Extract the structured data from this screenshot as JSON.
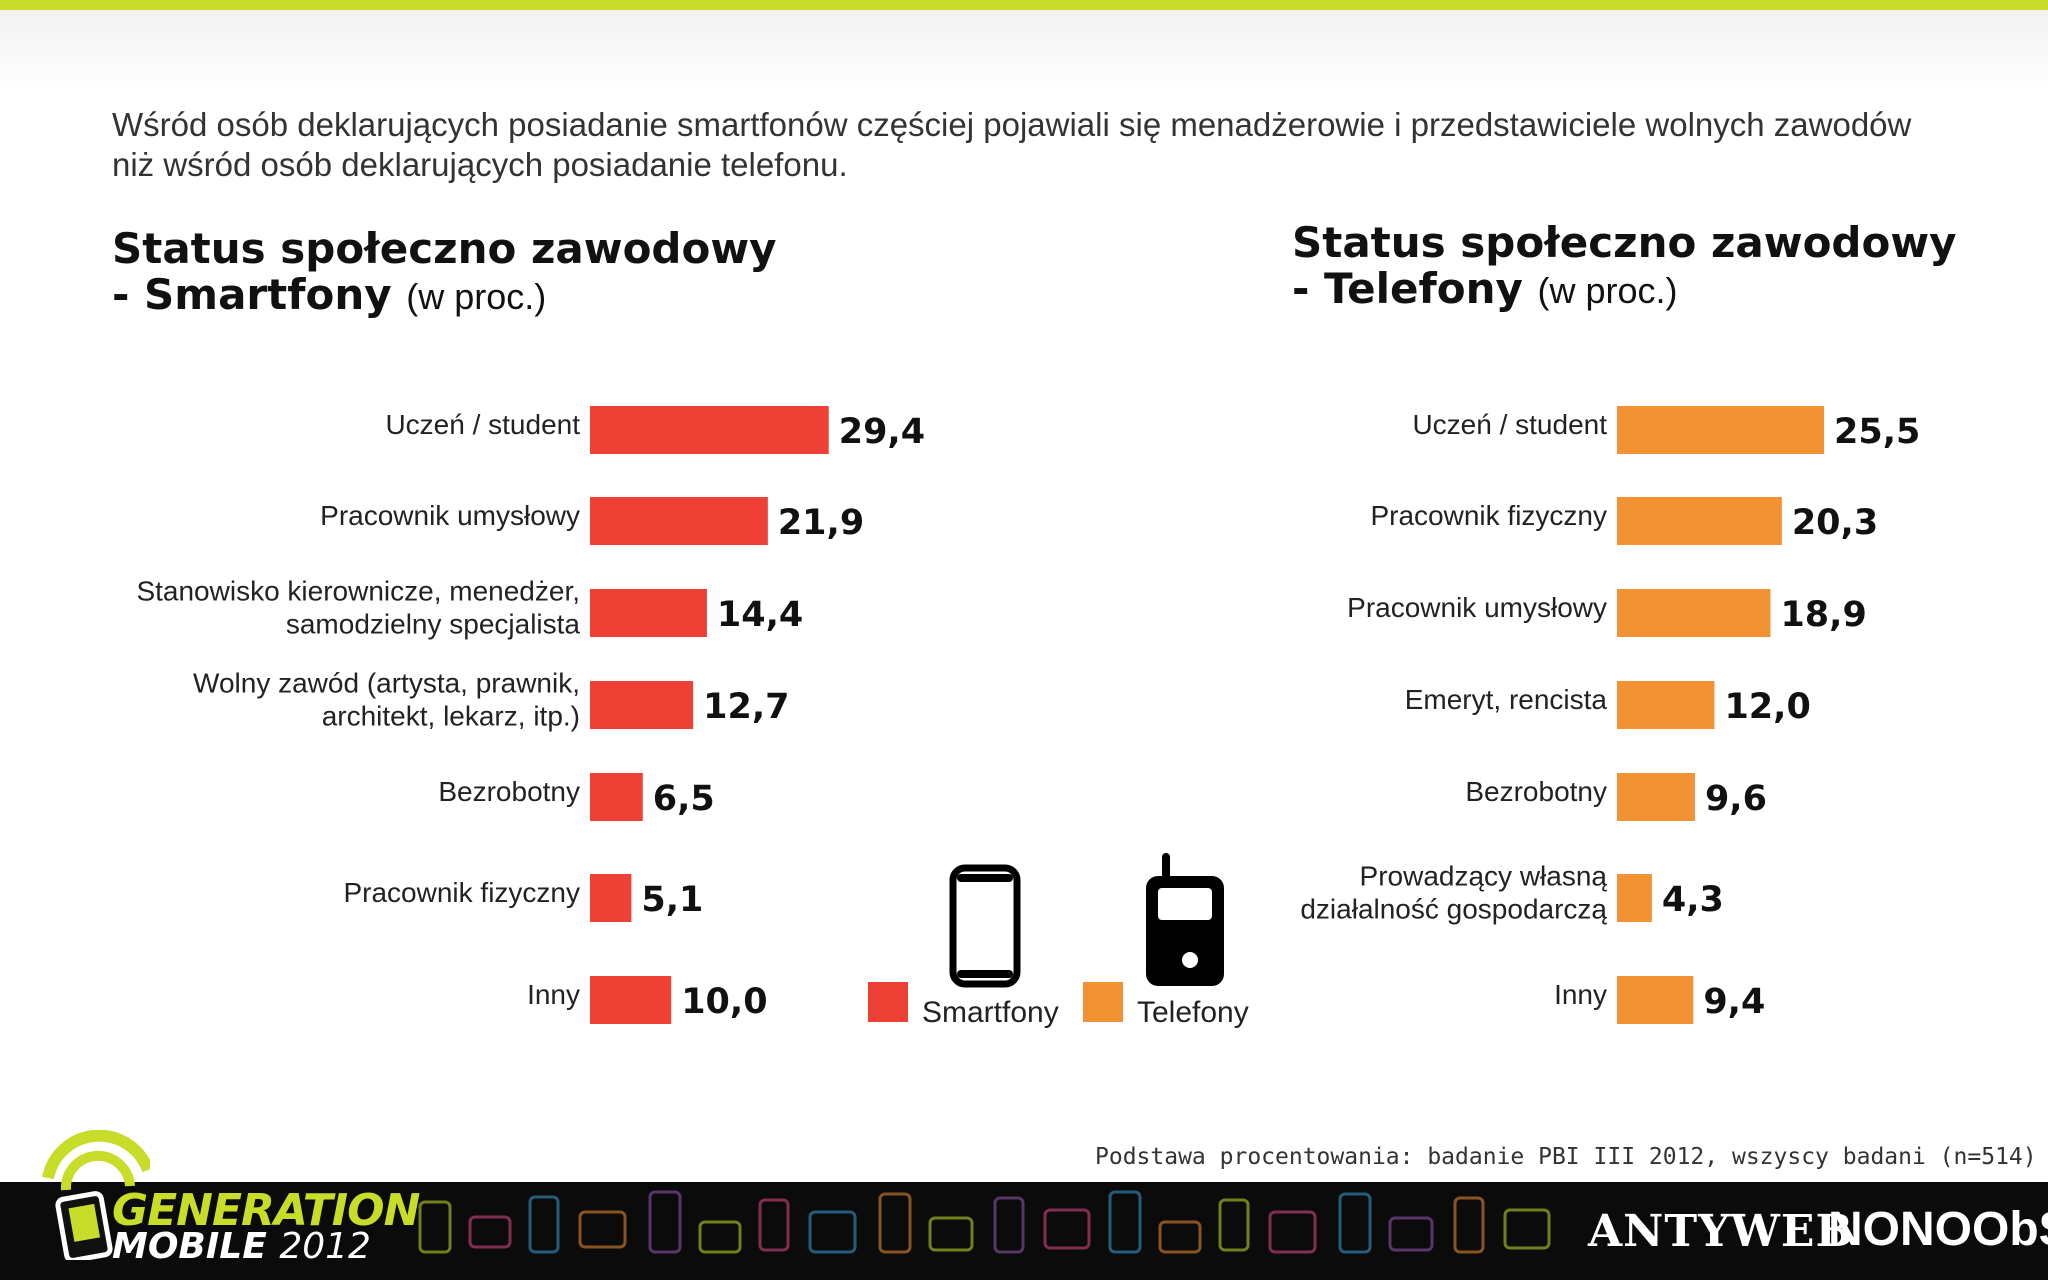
{
  "intro": "Wśród osób deklarujących posiadanie smartfonów częściej pojawiali się menadżerowie i przedstawiciele wolnych zawodów niż wśród osób deklarujących posiadanie telefonu.",
  "left_title": {
    "main": "Status społeczno zawodowy\n- Smartfony",
    "unit": "(w proc.)"
  },
  "right_title": {
    "main": "Status społeczno zawodowy\n- Telefony",
    "unit": "(w proc.)"
  },
  "legend": [
    {
      "label": "Smartfony",
      "color": "#ee4035",
      "icon": "smartphone-icon"
    },
    {
      "label": "Telefony",
      "color": "#f39135",
      "icon": "mobile-phone-icon"
    }
  ],
  "source": "Podstawa procentowania: badanie PBI III 2012, wszyscy badani (n=514)",
  "footer": {
    "logo_line1": "GENERATION",
    "logo_line2": "MOBILE",
    "logo_year": "2012",
    "brand1": "ANTYWEB",
    "brand2": "NONOObS"
  },
  "chart_data": [
    {
      "type": "bar",
      "orientation": "horizontal",
      "series_name": "Smartfony",
      "color": "#ee4035",
      "categories": [
        "Uczeń / student",
        "Pracownik umysłowy",
        "Stanowisko kierownicze, menedżer,\nsamodzielny specjalista",
        "Wolny zawód (artysta, prawnik,\narchitekt, lekarz, itp.)",
        "Bezrobotny",
        "Pracownik fizyczny",
        "Inny"
      ],
      "values": [
        29.4,
        21.9,
        14.4,
        12.7,
        6.5,
        5.1,
        10.0
      ],
      "value_labels": [
        "29,4",
        "21,9",
        "14,4",
        "12,7",
        "6,5",
        "5,1",
        "10,0"
      ]
    },
    {
      "type": "bar",
      "orientation": "horizontal",
      "series_name": "Telefony",
      "color": "#f39135",
      "categories": [
        "Uczeń / student",
        "Pracownik fizyczny",
        "Pracownik umysłowy",
        "Emeryt, rencista",
        "Bezrobotny",
        "Prowadzący własną\ndziałalność gospodarczą",
        "Inny"
      ],
      "values": [
        25.5,
        20.3,
        18.9,
        12.0,
        9.6,
        4.3,
        9.4
      ],
      "value_labels": [
        "25,5",
        "20,3",
        "18,9",
        "12,0",
        "9,6",
        "4,3",
        "9,4"
      ]
    }
  ]
}
